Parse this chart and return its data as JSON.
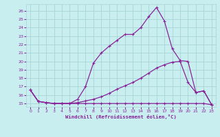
{
  "xlabel": "Windchill (Refroidissement éolien,°C)",
  "bg_color": "#c8eef0",
  "grid_color": "#a8d4d6",
  "line_color": "#882299",
  "xlim_min": -0.5,
  "xlim_max": 23.5,
  "ylim_min": 14.6,
  "ylim_max": 26.8,
  "yticks": [
    15,
    16,
    17,
    18,
    19,
    20,
    21,
    22,
    23,
    24,
    25,
    26
  ],
  "xticks": [
    0,
    1,
    2,
    3,
    4,
    5,
    6,
    7,
    8,
    9,
    10,
    11,
    12,
    13,
    14,
    15,
    16,
    17,
    18,
    19,
    20,
    21,
    22,
    23
  ],
  "line1_x": [
    0,
    1,
    2,
    3,
    4,
    5,
    6,
    7,
    8,
    9,
    10,
    11,
    12,
    13,
    14,
    15,
    16,
    17,
    18,
    19,
    20,
    21,
    22,
    23
  ],
  "line1_y": [
    16.6,
    15.25,
    15.1,
    15.0,
    15.0,
    15.0,
    15.0,
    15.0,
    15.0,
    15.0,
    15.0,
    15.0,
    15.0,
    15.0,
    15.0,
    15.0,
    15.0,
    15.0,
    15.0,
    15.0,
    15.0,
    15.0,
    15.0,
    14.85
  ],
  "line2_x": [
    0,
    1,
    2,
    3,
    4,
    5,
    6,
    7,
    8,
    9,
    10,
    11,
    12,
    13,
    14,
    15,
    16,
    17,
    18,
    19,
    20,
    21,
    22,
    23
  ],
  "line2_y": [
    16.6,
    15.25,
    15.1,
    15.0,
    15.0,
    15.0,
    15.1,
    15.3,
    15.5,
    15.8,
    16.2,
    16.7,
    17.1,
    17.5,
    18.0,
    18.6,
    19.2,
    19.6,
    19.9,
    20.0,
    17.5,
    16.3,
    16.5,
    14.85
  ],
  "line3_x": [
    0,
    1,
    2,
    3,
    4,
    5,
    6,
    7,
    8,
    9,
    10,
    11,
    12,
    13,
    14,
    15,
    16,
    17,
    18,
    19,
    20,
    21,
    22,
    23
  ],
  "line3_y": [
    16.6,
    15.25,
    15.1,
    15.0,
    15.0,
    15.0,
    15.5,
    17.0,
    19.8,
    21.0,
    21.8,
    22.5,
    23.2,
    23.2,
    24.0,
    25.3,
    26.4,
    24.8,
    21.5,
    20.1,
    20.0,
    16.3,
    16.5,
    14.85
  ]
}
